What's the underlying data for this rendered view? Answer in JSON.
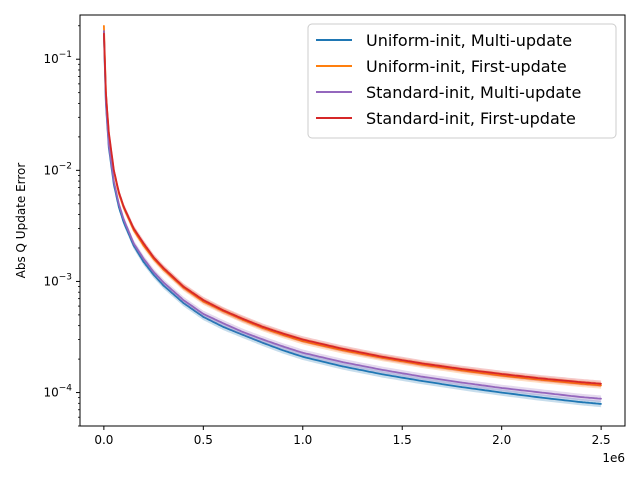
{
  "chart_data": {
    "type": "line",
    "title": "",
    "xlabel": "",
    "ylabel": "Abs Q Update Error",
    "x_offset_label": "1e6",
    "x_scale": "linear",
    "y_scale": "log",
    "xlim": [
      -120000,
      2620000
    ],
    "ylim": [
      5e-05,
      0.25
    ],
    "grid": false,
    "legend_position": "top-right",
    "x_ticks": [
      {
        "value": 0,
        "label": "0.0"
      },
      {
        "value": 500000,
        "label": "0.5"
      },
      {
        "value": 1000000,
        "label": "1.0"
      },
      {
        "value": 1500000,
        "label": "1.5"
      },
      {
        "value": 2000000,
        "label": "2.0"
      },
      {
        "value": 2500000,
        "label": "2.5"
      }
    ],
    "y_ticks": [
      {
        "value": 0.0001,
        "base": "10",
        "exp": "−4"
      },
      {
        "value": 0.001,
        "base": "10",
        "exp": "−3"
      },
      {
        "value": 0.01,
        "base": "10",
        "exp": "−2"
      },
      {
        "value": 0.1,
        "base": "10",
        "exp": "−1"
      }
    ],
    "x": [
      0,
      10000,
      25000,
      50000,
      75000,
      100000,
      150000,
      200000,
      250000,
      300000,
      400000,
      500000,
      600000,
      700000,
      800000,
      900000,
      1000000,
      1200000,
      1400000,
      1600000,
      1800000,
      2000000,
      2200000,
      2400000,
      2500000
    ],
    "series": [
      {
        "name": "Uniform-init, Multi-update",
        "color": "#1f77b4",
        "values": [
          0.17,
          0.04,
          0.016,
          0.0075,
          0.0047,
          0.0034,
          0.0021,
          0.0015,
          0.00115,
          0.00092,
          0.00064,
          0.00048,
          0.00039,
          0.00033,
          0.00028,
          0.00024,
          0.00021,
          0.000172,
          0.000146,
          0.000127,
          0.000112,
          0.0001,
          9e-05,
          8.2e-05,
          7.9e-05
        ]
      },
      {
        "name": "Uniform-init, First-update",
        "color": "#ff7f0e",
        "values": [
          0.2,
          0.05,
          0.021,
          0.0098,
          0.0062,
          0.0046,
          0.0029,
          0.0021,
          0.0016,
          0.00128,
          0.00088,
          0.00066,
          0.00054,
          0.00045,
          0.00038,
          0.00033,
          0.00029,
          0.00024,
          0.000205,
          0.000178,
          0.000158,
          0.000142,
          0.00013,
          0.00012,
          0.000116
        ]
      },
      {
        "name": "Standard-init, Multi-update",
        "color": "#9467bd",
        "values": [
          0.18,
          0.042,
          0.017,
          0.008,
          0.005,
          0.0036,
          0.0022,
          0.0016,
          0.00122,
          0.00098,
          0.00068,
          0.00051,
          0.00042,
          0.00035,
          0.0003,
          0.00026,
          0.000228,
          0.000188,
          0.00016,
          0.000139,
          0.000123,
          0.00011,
          0.0001,
          9.1e-05,
          8.8e-05
        ]
      },
      {
        "name": "Standard-init, First-update",
        "color": "#d62728",
        "values": [
          0.17,
          0.05,
          0.022,
          0.0101,
          0.0064,
          0.0047,
          0.003,
          0.0022,
          0.00165,
          0.00132,
          0.0009,
          0.00068,
          0.00055,
          0.00046,
          0.00039,
          0.00034,
          0.0003,
          0.000248,
          0.00021,
          0.000183,
          0.000163,
          0.000147,
          0.000134,
          0.000124,
          0.00012
        ]
      }
    ]
  }
}
